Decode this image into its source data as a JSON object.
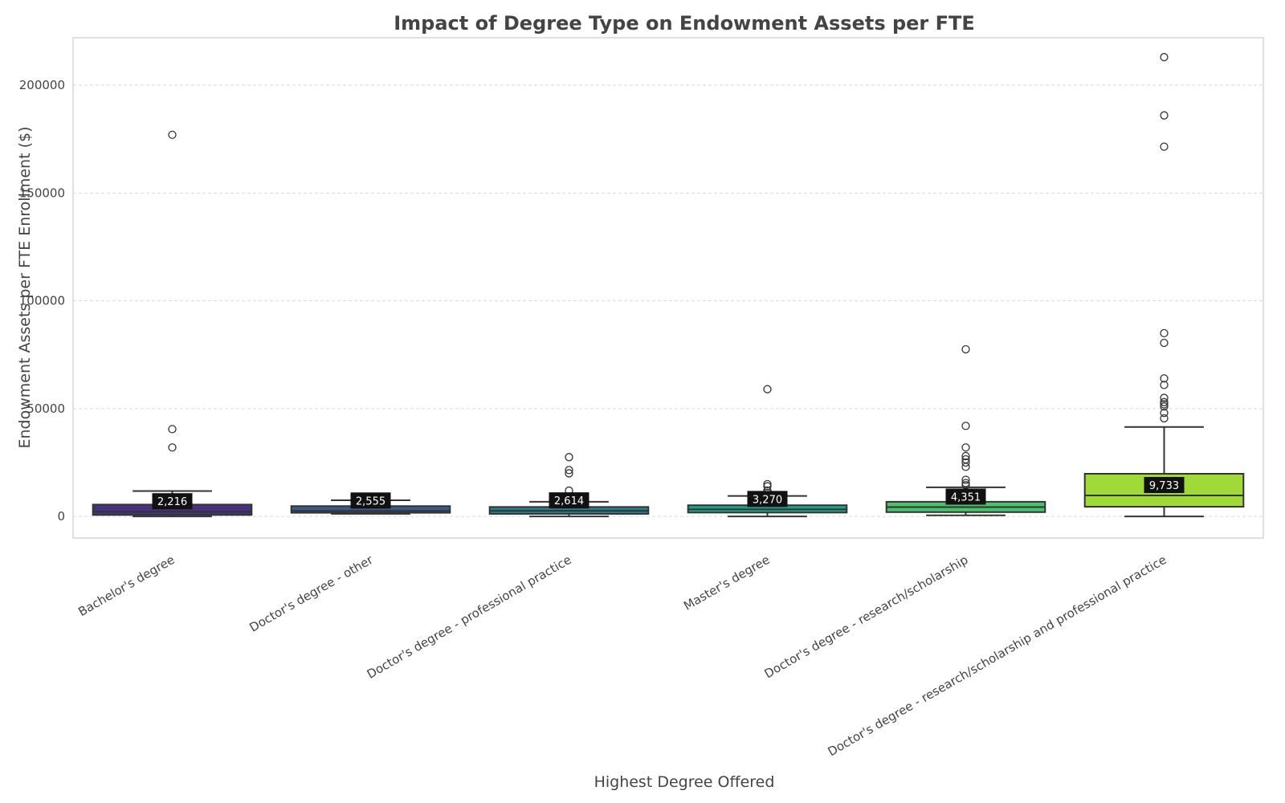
{
  "chart_data": {
    "type": "box",
    "title": "Impact of Degree Type on Endowment Assets per FTE",
    "xlabel": "Highest Degree Offered",
    "ylabel": "Endowment Assets per FTE Enrollment ($)",
    "ylim": [
      -10000,
      222000
    ],
    "yticks": [
      0,
      50000,
      100000,
      150000,
      200000
    ],
    "ytick_labels": [
      "0",
      "50000",
      "100000",
      "150000",
      "200000"
    ],
    "grid": "horizontal",
    "categories": [
      "Bachelor's degree",
      "Doctor's degree - other",
      "Doctor's degree -  professional practice",
      "Master's degree",
      "Doctor's degree - research/scholarship",
      "Doctor's degree - research/scholarship and professional practice"
    ],
    "boxes": [
      {
        "color": "#46327e",
        "whisker_low": 0,
        "q1": 700,
        "median": 2216,
        "median_label": "2,216",
        "q3": 5500,
        "whisker_high": 11800,
        "outliers": [
          177000,
          40500,
          32000
        ]
      },
      {
        "color": "#365c8d",
        "whisker_low": 1200,
        "q1": 1700,
        "median": 2555,
        "median_label": "2,555",
        "q3": 4800,
        "whisker_high": 7500,
        "outliers": []
      },
      {
        "color": "#277f8e",
        "whisker_low": 0,
        "q1": 1200,
        "median": 2614,
        "median_label": "2,614",
        "q3": 4400,
        "whisker_high": 6800,
        "outliers": [
          27500,
          21500,
          20000,
          12000
        ]
      },
      {
        "color": "#1fa187",
        "whisker_low": 0,
        "q1": 1800,
        "median": 3270,
        "median_label": "3,270",
        "q3": 5200,
        "whisker_high": 9500,
        "outliers": [
          59000,
          15000,
          14000,
          12000,
          11000
        ]
      },
      {
        "color": "#4ac16d",
        "whisker_low": 500,
        "q1": 2000,
        "median": 4351,
        "median_label": "4,351",
        "q3": 6800,
        "whisker_high": 13500,
        "outliers": [
          77500,
          42000,
          32000,
          28000,
          26500,
          25000,
          23000,
          17000,
          15500,
          14500
        ]
      },
      {
        "color": "#a0da39",
        "whisker_low": 0,
        "q1": 4500,
        "median": 9733,
        "median_label": "9,733",
        "q3": 19800,
        "whisker_high": 41500,
        "outliers": [
          213000,
          186000,
          171500,
          85000,
          80500,
          64000,
          61000,
          55000,
          53000,
          52000,
          51000,
          48000,
          45500
        ]
      }
    ]
  }
}
